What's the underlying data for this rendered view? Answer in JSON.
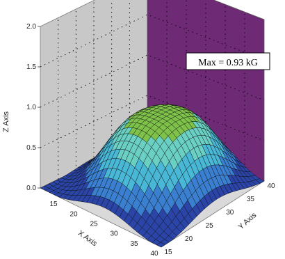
{
  "chart_data": {
    "type": "surface",
    "title": "",
    "xlabel": "X Axis",
    "ylabel": "Y Axis",
    "zlabel": "Z Axis",
    "xlim": [
      10,
      40
    ],
    "ylim": [
      15,
      40
    ],
    "zlim": [
      0,
      2.0
    ],
    "x_ticks": [
      "15",
      "20",
      "25",
      "30",
      "35",
      "40"
    ],
    "y_ticks": [
      "15",
      "20",
      "25",
      "30",
      "35",
      "40"
    ],
    "z_ticks": [
      "0.0",
      "0.5",
      "1.0",
      "1.5",
      "2.0"
    ],
    "z_max": 0.93,
    "annotation": "Max = 0.93 kG",
    "contour_levels": [
      0.2,
      0.4,
      0.6,
      0.8
    ],
    "colormap": [
      "#2a44a8",
      "#3a7fd0",
      "#48b8d6",
      "#6ad0c4",
      "#7fc24a"
    ],
    "back_wall_left_color": "#c8c8c8",
    "back_wall_right_color": "#6e2a74",
    "grid": true
  }
}
